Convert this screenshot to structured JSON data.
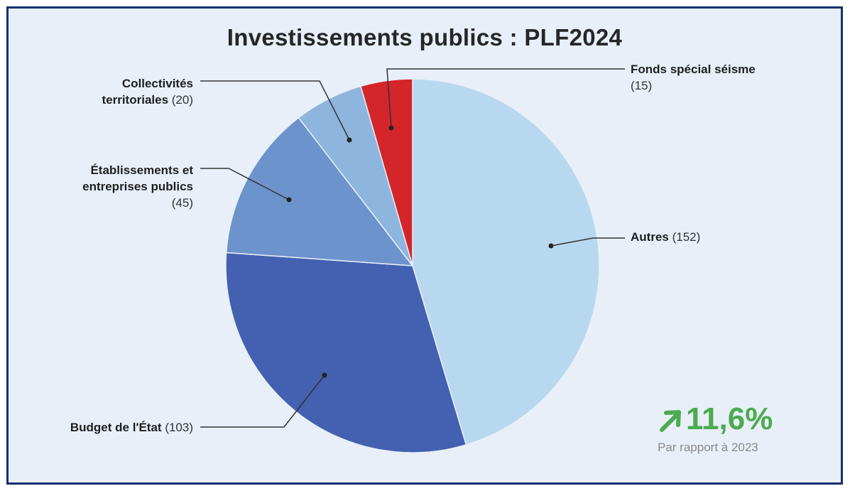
{
  "title": "Investissements publics : PLF2024",
  "chart_data": {
    "type": "pie",
    "title": "Investissements publics : PLF2024",
    "slices": [
      {
        "label": "Autres",
        "value": 152,
        "value_text": "(152)",
        "color": "#b8d8f0"
      },
      {
        "label": "Budget de l'État",
        "value": 103,
        "value_text": "(103)",
        "color": "#4361b0"
      },
      {
        "label": "Établissements et entreprises publics",
        "label_line1": "Établissements et",
        "label_line2": "entreprises publics",
        "value": 45,
        "value_text": "(45)",
        "color": "#6d93cc"
      },
      {
        "label": "Collectivités territoriales",
        "label_line1": "Collectivités",
        "label_line2": "territoriales",
        "value": 20,
        "value_text": "(20)",
        "color": "#8db5de"
      },
      {
        "label": "Fonds spécial séisme",
        "value": 15,
        "value_text": "(15)",
        "color": "#d4262a"
      }
    ]
  },
  "kpi": {
    "value": "11,6%",
    "subtitle": "Par rapport à 2023",
    "icon": "arrow-up-right-icon",
    "color": "#4bab4e"
  }
}
